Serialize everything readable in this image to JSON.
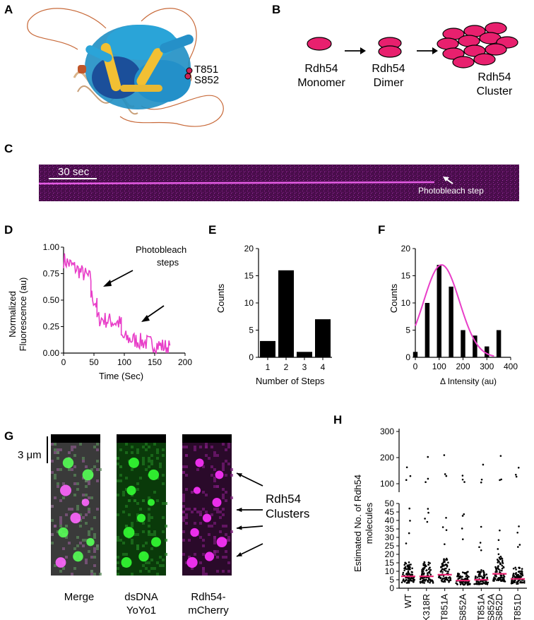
{
  "panels": {
    "A": {
      "letter": "A",
      "residue_labels": [
        "T851",
        "S852"
      ]
    },
    "B": {
      "letter": "B",
      "states": [
        {
          "line1": "Rdh54",
          "line2": "Monomer"
        },
        {
          "line1": "Rdh54",
          "line2": "Dimer"
        },
        {
          "line1": "Rdh54",
          "line2": "Cluster"
        }
      ],
      "colors": {
        "ellipse_fill": "#e8206e",
        "ellipse_stroke": "#000000"
      }
    },
    "C": {
      "letter": "C",
      "scale_label": "30 sec",
      "annotation": "Photobleach step",
      "colors": {
        "kymo_bg": "#4a0d4c",
        "signal": "#ff4dff"
      }
    },
    "D": {
      "letter": "D"
    },
    "E": {
      "letter": "E"
    },
    "F": {
      "letter": "F"
    },
    "G": {
      "letter": "G",
      "scale_label": "3 μm",
      "channels": [
        {
          "line1": "Merge",
          "line2": ""
        },
        {
          "line1": "dsDNA",
          "line2": "YoYo1"
        },
        {
          "line1": "Rdh54-",
          "line2": "mCherry"
        }
      ],
      "annotation_line1": "Rdh54",
      "annotation_line2": "Clusters"
    },
    "H": {
      "letter": "H"
    }
  },
  "chart_data": [
    {
      "id": "D",
      "type": "line",
      "xlabel": "Time (Sec)",
      "ylabel_line1": "Normalized",
      "ylabel_line2": "Fluorescence (au)",
      "xlim": [
        0,
        200
      ],
      "ylim": [
        0,
        1.0
      ],
      "xticks": [
        "0",
        "50",
        "100",
        "150",
        "200"
      ],
      "yticks": [
        "0.00",
        "0.25",
        "0.50",
        "0.75",
        "1.00"
      ],
      "annotation_line1": "Photobleach",
      "annotation_line2": "steps",
      "color": "#e83ec8",
      "segments": [
        {
          "x": [
            0,
            45
          ],
          "y": [
            0.88,
            0.7
          ]
        },
        {
          "x": [
            45,
            55
          ],
          "y": [
            0.55,
            0.45
          ]
        },
        {
          "x": [
            55,
            95
          ],
          "y": [
            0.33,
            0.28
          ]
        },
        {
          "x": [
            95,
            175
          ],
          "y": [
            0.15,
            0.05
          ]
        }
      ]
    },
    {
      "id": "E",
      "type": "bar",
      "xlabel": "Number of Steps",
      "ylabel": "Counts",
      "categories": [
        "1",
        "2",
        "3",
        "4"
      ],
      "values": [
        3,
        16,
        1,
        7
      ],
      "ylim": [
        0,
        20
      ],
      "yticks": [
        "0",
        "5",
        "10",
        "15",
        "20"
      ],
      "color": "#000000"
    },
    {
      "id": "F",
      "type": "bar",
      "xlabel": "Δ Intensity (au)",
      "ylabel": "Counts",
      "x": [
        0,
        50,
        100,
        150,
        200,
        250,
        300,
        350
      ],
      "values": [
        1,
        10,
        17,
        13,
        5,
        4,
        2,
        5
      ],
      "xlim": [
        0,
        400
      ],
      "ylim": [
        0,
        20
      ],
      "xticks": [
        "0",
        "100",
        "200",
        "300",
        "400"
      ],
      "yticks": [
        "0",
        "5",
        "10",
        "15",
        "20"
      ],
      "fit": {
        "type": "gaussian",
        "amplitude": 17,
        "mean": 110,
        "sd": 75
      },
      "color": "#000000",
      "fit_color": "#e83ec8"
    },
    {
      "id": "H",
      "type": "scatter",
      "ylabel_line1": "Estimated No. of Rdh54",
      "ylabel_line2": "molecules",
      "categories": [
        "WT",
        "K318R",
        "T851A",
        "S852A",
        "T851A S852A",
        "S852D",
        "T851D"
      ],
      "category_lines": [
        [
          "WT"
        ],
        [
          "K318R"
        ],
        [
          "T851A"
        ],
        [
          "S852A"
        ],
        [
          "T851A",
          "S852A"
        ],
        [
          "S852D"
        ],
        [
          "T851D"
        ]
      ],
      "medians": [
        7,
        7,
        8,
        4.5,
        5,
        8.5,
        5.5
      ],
      "y_lower_ticks": [
        "0",
        "5",
        "10",
        "15",
        "20",
        "25",
        "30",
        "35",
        "40",
        "45",
        "50"
      ],
      "y_upper_ticks": [
        "100",
        "200",
        "300"
      ],
      "median_color": "#e8206e"
    }
  ]
}
